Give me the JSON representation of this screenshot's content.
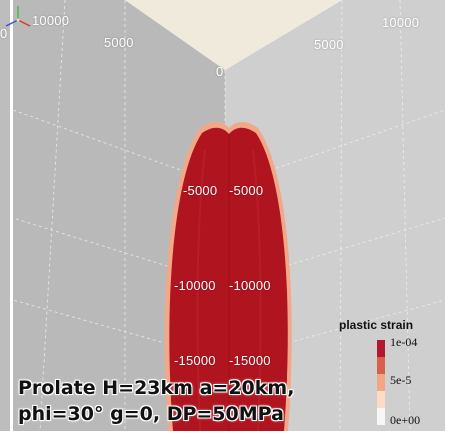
{
  "view": {
    "background_color": "#ffffff",
    "left_wall_color": "#b9b9ba",
    "right_wall_color": "#cfcfd0",
    "top_face_color": "#efeadb",
    "grid_color": "#f2f2f2"
  },
  "axis_ticks": {
    "top_left_outer": "10000",
    "top_left_inner": "5000",
    "top_right_outer": "10000",
    "top_right_inner": "5000",
    "corner_zero": "0",
    "left_edge_fragment": "0",
    "depth_left": [
      "-5000",
      "-10000",
      "-15000"
    ],
    "depth_right": [
      "-5000",
      "-10000",
      "-15000"
    ]
  },
  "plume": {
    "fill_color": "#b0141f",
    "edge_color": "#f1a888"
  },
  "legend": {
    "title": "plastic strain",
    "labels": [
      "1e-04",
      "5e-5",
      "0e+00"
    ],
    "colors": [
      "#b2182b",
      "#d6604d",
      "#f4a582",
      "#fddbc7",
      "#f7f7f7"
    ]
  },
  "caption": {
    "line1": "Prolate H=23km a=20km,",
    "line2": "phi=30° g=0, DP=50MPa"
  },
  "triad": {
    "x_color": "#d93a2b",
    "y_color": "#4fb84a",
    "z_color": "#3a4fd9"
  }
}
